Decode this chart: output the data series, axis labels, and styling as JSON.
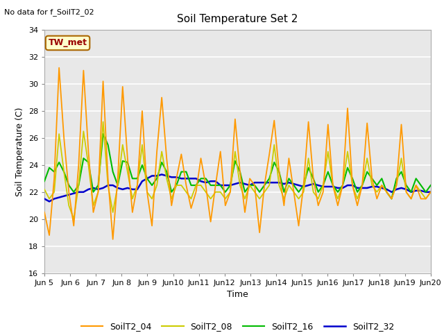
{
  "title": "Soil Temperature Set 2",
  "top_left_text": "No data for f_SoilT2_02",
  "xlabel": "Time",
  "ylabel": "Soil Temperature (C)",
  "ylim": [
    16,
    34
  ],
  "yticks": [
    16,
    18,
    20,
    22,
    24,
    26,
    28,
    30,
    32,
    34
  ],
  "xtick_labels": [
    "Jun 5",
    "Jun 6",
    "Jun 7",
    "Jun 8",
    "Jun 9",
    "Jun 10",
    "Jun 11",
    "Jun 12",
    "Jun 13",
    "Jun 14",
    "Jun 15",
    "Jun 16",
    "Jun 17",
    "Jun 18",
    "Jun 19",
    "Jun 20"
  ],
  "tw_met_label": "TW_met",
  "tw_met_color": "#990000",
  "tw_met_bg": "#ffffcc",
  "tw_met_border": "#aa6600",
  "colors": {
    "SoilT2_04": "#ff9900",
    "SoilT2_08": "#cccc00",
    "SoilT2_16": "#00bb00",
    "SoilT2_32": "#0000cc"
  },
  "fig_facecolor": "#ffffff",
  "plot_bg": "#e8e8e8",
  "grid_color": "#ffffff",
  "series": {
    "SoilT2_04": [
      20.5,
      18.8,
      23.0,
      31.2,
      26.0,
      22.0,
      19.5,
      24.0,
      31.0,
      25.0,
      20.5,
      22.0,
      30.2,
      23.0,
      18.5,
      23.0,
      29.8,
      24.5,
      20.5,
      22.5,
      28.0,
      22.0,
      19.5,
      25.0,
      29.0,
      24.5,
      21.0,
      23.0,
      24.8,
      22.5,
      20.8,
      22.0,
      24.5,
      22.5,
      19.8,
      22.5,
      25.0,
      21.0,
      22.0,
      27.4,
      23.5,
      20.5,
      23.0,
      22.5,
      19.0,
      22.5,
      24.8,
      27.3,
      23.5,
      21.0,
      24.5,
      22.0,
      19.5,
      22.5,
      27.2,
      23.0,
      21.0,
      22.0,
      27.0,
      22.5,
      21.0,
      22.5,
      28.2,
      22.5,
      21.0,
      22.5,
      27.1,
      23.0,
      21.5,
      22.5,
      22.0,
      21.5,
      22.5,
      27.0,
      22.0,
      21.5,
      22.5,
      21.5,
      21.5,
      22.0
    ],
    "SoilT2_08": [
      22.2,
      21.5,
      22.0,
      26.3,
      23.5,
      21.0,
      20.0,
      22.5,
      26.5,
      24.0,
      21.0,
      22.0,
      27.2,
      22.5,
      20.5,
      22.5,
      25.5,
      23.5,
      21.5,
      22.5,
      25.5,
      22.0,
      21.5,
      22.5,
      25.0,
      23.0,
      21.5,
      22.5,
      22.5,
      22.0,
      21.5,
      22.5,
      22.5,
      22.0,
      21.5,
      22.0,
      22.0,
      21.5,
      22.0,
      25.0,
      22.5,
      21.5,
      22.5,
      22.0,
      21.5,
      22.0,
      22.5,
      25.5,
      22.5,
      21.5,
      22.5,
      22.0,
      21.5,
      22.0,
      24.5,
      22.0,
      21.5,
      22.5,
      25.0,
      22.5,
      21.5,
      22.5,
      25.0,
      22.5,
      21.5,
      22.5,
      24.5,
      22.5,
      22.0,
      22.5,
      22.0,
      21.5,
      22.5,
      24.5,
      22.0,
      21.5,
      22.5,
      22.0,
      21.5,
      22.0
    ],
    "SoilT2_16": [
      22.8,
      23.8,
      23.5,
      24.2,
      23.5,
      22.5,
      22.0,
      22.5,
      24.5,
      24.2,
      22.0,
      22.5,
      26.3,
      25.5,
      23.5,
      22.5,
      24.3,
      24.2,
      23.0,
      23.0,
      24.0,
      23.0,
      22.5,
      23.0,
      24.2,
      23.5,
      22.0,
      22.5,
      23.5,
      23.5,
      22.5,
      22.5,
      23.0,
      23.0,
      22.5,
      22.5,
      22.5,
      22.0,
      22.5,
      24.3,
      23.5,
      22.0,
      22.5,
      22.5,
      22.0,
      22.5,
      23.0,
      24.2,
      23.5,
      22.0,
      23.0,
      22.5,
      22.0,
      22.5,
      23.8,
      23.0,
      22.0,
      22.5,
      23.5,
      22.5,
      22.0,
      22.5,
      23.8,
      23.0,
      22.0,
      22.5,
      23.5,
      23.0,
      22.5,
      23.0,
      22.0,
      21.5,
      23.0,
      23.5,
      22.5,
      22.0,
      23.0,
      22.5,
      22.0,
      22.5
    ],
    "SoilT2_32": [
      21.5,
      21.3,
      21.5,
      21.6,
      21.7,
      21.8,
      21.9,
      22.0,
      22.0,
      22.2,
      22.3,
      22.2,
      22.3,
      22.5,
      22.5,
      22.3,
      22.2,
      22.3,
      22.2,
      22.2,
      22.8,
      23.0,
      23.2,
      23.2,
      23.3,
      23.2,
      23.1,
      23.1,
      23.0,
      23.0,
      23.0,
      23.0,
      22.8,
      22.7,
      22.8,
      22.8,
      22.5,
      22.5,
      22.5,
      22.6,
      22.7,
      22.6,
      22.5,
      22.7,
      22.7,
      22.7,
      22.7,
      22.7,
      22.7,
      22.6,
      22.7,
      22.6,
      22.5,
      22.4,
      22.5,
      22.6,
      22.5,
      22.4,
      22.4,
      22.4,
      22.3,
      22.3,
      22.5,
      22.5,
      22.3,
      22.3,
      22.3,
      22.4,
      22.4,
      22.3,
      22.2,
      22.0,
      22.2,
      22.3,
      22.2,
      22.0,
      22.1,
      22.1,
      22.0,
      22.0
    ]
  }
}
